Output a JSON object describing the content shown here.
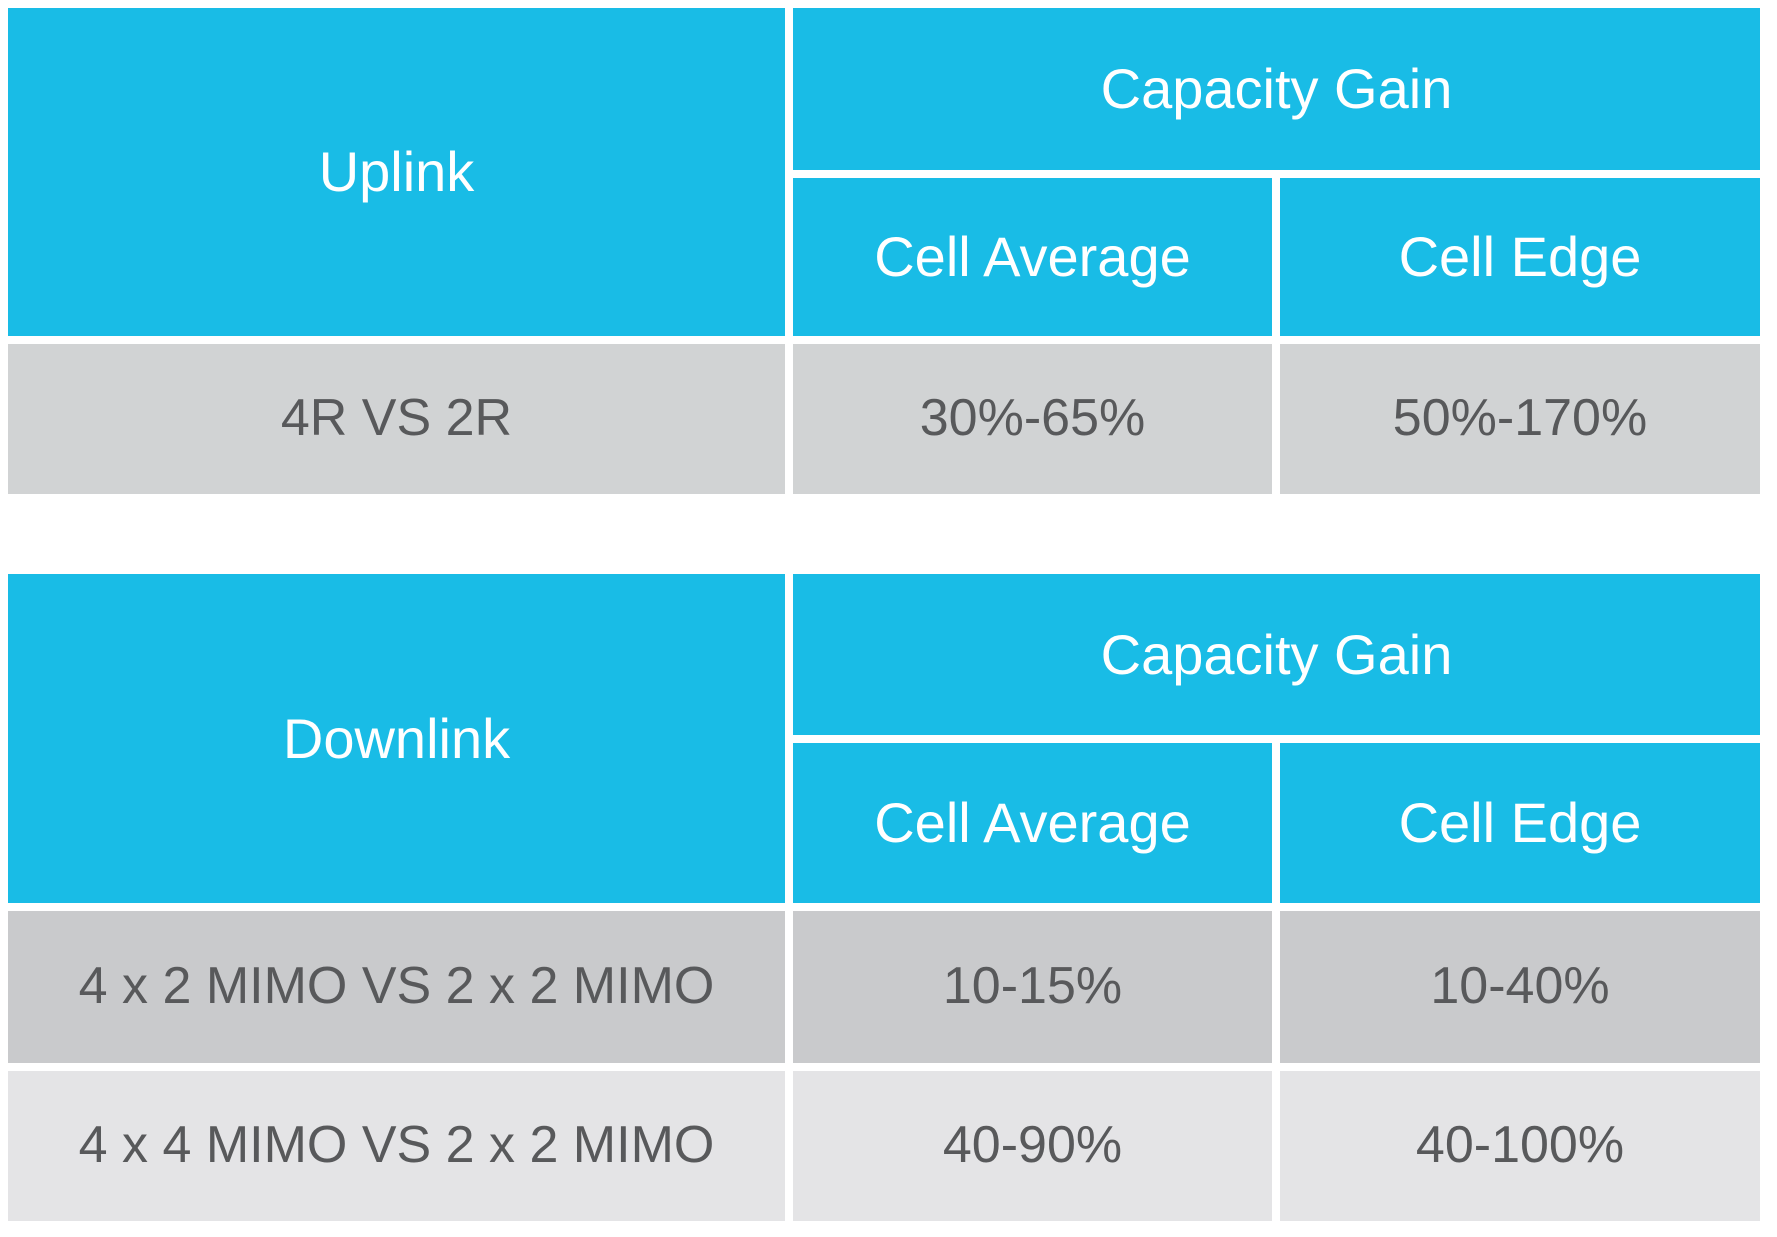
{
  "colors": {
    "accent_cyan": "#19BCE6",
    "header_text": "#FFFFFF",
    "data_text": "#58595B",
    "uplink_row_bg": "#D1D3D4",
    "downlink_row1_bg": "#C9CACC",
    "downlink_row2_bg": "#E4E4E6",
    "divider": "#FFFFFF"
  },
  "uplink_table": {
    "row_header": "Uplink",
    "group_header": "Capacity Gain",
    "col_header_average": "Cell Average",
    "col_header_edge": "Cell Edge",
    "rows": [
      {
        "label": "4R VS 2R",
        "cell_average": "30%-65%",
        "cell_edge": "50%-170%"
      }
    ]
  },
  "downlink_table": {
    "row_header": "Downlink",
    "group_header": "Capacity Gain",
    "col_header_average": "Cell Average",
    "col_header_edge": "Cell Edge",
    "rows": [
      {
        "label": "4 x 2 MIMO VS 2 x 2 MIMO",
        "cell_average": "10-15%",
        "cell_edge": "10-40%"
      },
      {
        "label": "4 x 4 MIMO VS 2 x 2 MIMO",
        "cell_average": "40-90%",
        "cell_edge": "40-100%"
      }
    ]
  },
  "chart_data": [
    {
      "type": "table",
      "title": "Uplink Capacity Gain",
      "columns": [
        "Uplink",
        "Cell Average",
        "Cell Edge"
      ],
      "rows": [
        [
          "4R VS 2R",
          "30%-65%",
          "50%-170%"
        ]
      ]
    },
    {
      "type": "table",
      "title": "Downlink Capacity Gain",
      "columns": [
        "Downlink",
        "Cell Average",
        "Cell Edge"
      ],
      "rows": [
        [
          "4 x 2 MIMO VS 2 x 2 MIMO",
          "10-15%",
          "10-40%"
        ],
        [
          "4 x 4 MIMO VS 2 x 2 MIMO",
          "40-90%",
          "40-100%"
        ]
      ]
    }
  ]
}
